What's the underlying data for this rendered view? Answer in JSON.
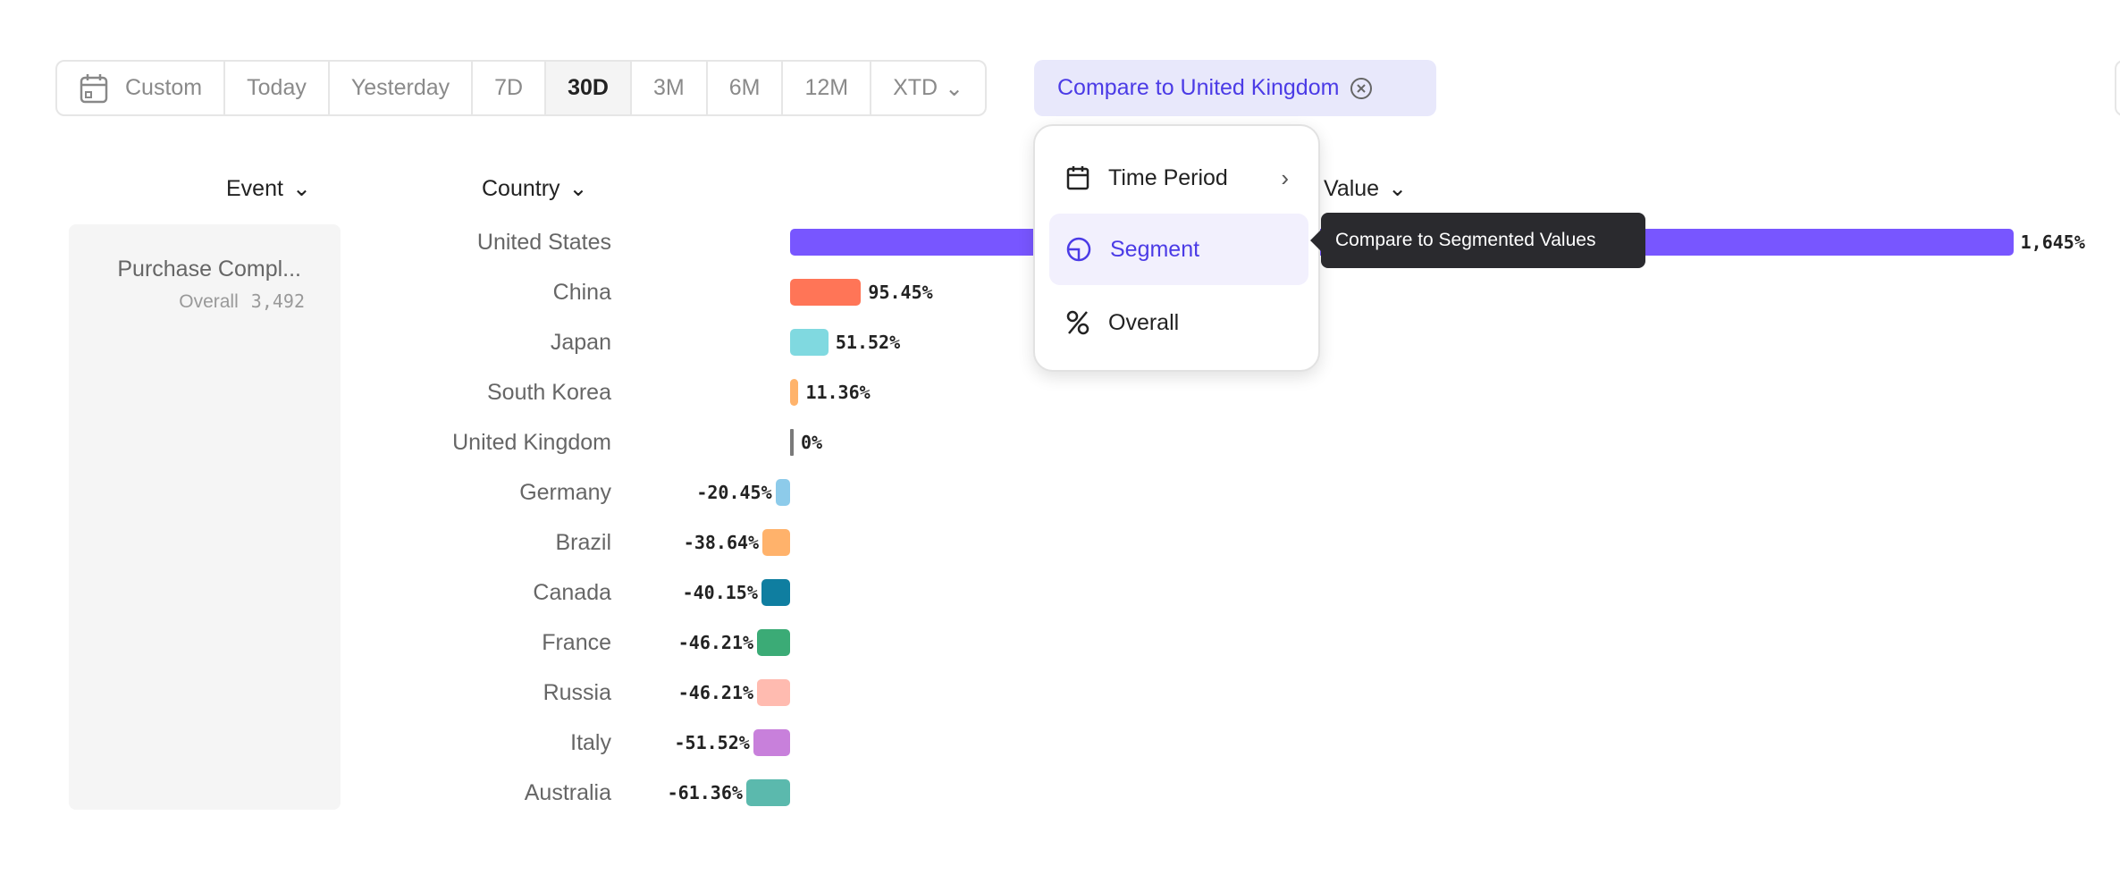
{
  "toolbar": {
    "items": [
      "Custom",
      "Today",
      "Yesterday",
      "7D",
      "30D",
      "3M",
      "6M",
      "12M",
      "XTD"
    ],
    "active": "30D"
  },
  "compare": {
    "label": "Compare to United Kingdom"
  },
  "headers": {
    "event": "Event",
    "country": "Country",
    "value": "Value"
  },
  "event_panel": {
    "name": "Purchase Compl...",
    "scope": "Overall",
    "count": "3,492"
  },
  "menu": {
    "items": [
      {
        "label": "Time Period",
        "icon": "calendar-icon"
      },
      {
        "label": "Segment",
        "icon": "segment-icon"
      },
      {
        "label": "Overall",
        "icon": "percent-icon"
      }
    ],
    "selected": "Segment"
  },
  "tooltip": "Compare to Segmented Values",
  "chart_data": {
    "type": "bar",
    "orientation": "horizontal",
    "categories": [
      "United States",
      "China",
      "Japan",
      "South Korea",
      "United Kingdom",
      "Germany",
      "Brazil",
      "Canada",
      "France",
      "Russia",
      "Italy",
      "Australia"
    ],
    "values": [
      1645,
      95.45,
      51.52,
      11.36,
      0,
      -20.45,
      -38.64,
      -40.15,
      -46.21,
      -46.21,
      -51.52,
      -61.36
    ],
    "labels": [
      "1,645%",
      "95.45%",
      "51.52%",
      "11.36%",
      "0%",
      "-20.45%",
      "-38.64%",
      "-40.15%",
      "-46.21%",
      "-46.21%",
      "-51.52%",
      "-61.36%"
    ],
    "colors": [
      "#7856ff",
      "#ff7557",
      "#80d9e0",
      "#ffb36b",
      "#7a7a7a",
      "#8dcbea",
      "#ffb26b",
      "#0f7ea0",
      "#3bab76",
      "#ffbbb0",
      "#c880db",
      "#5bb9ad"
    ]
  }
}
